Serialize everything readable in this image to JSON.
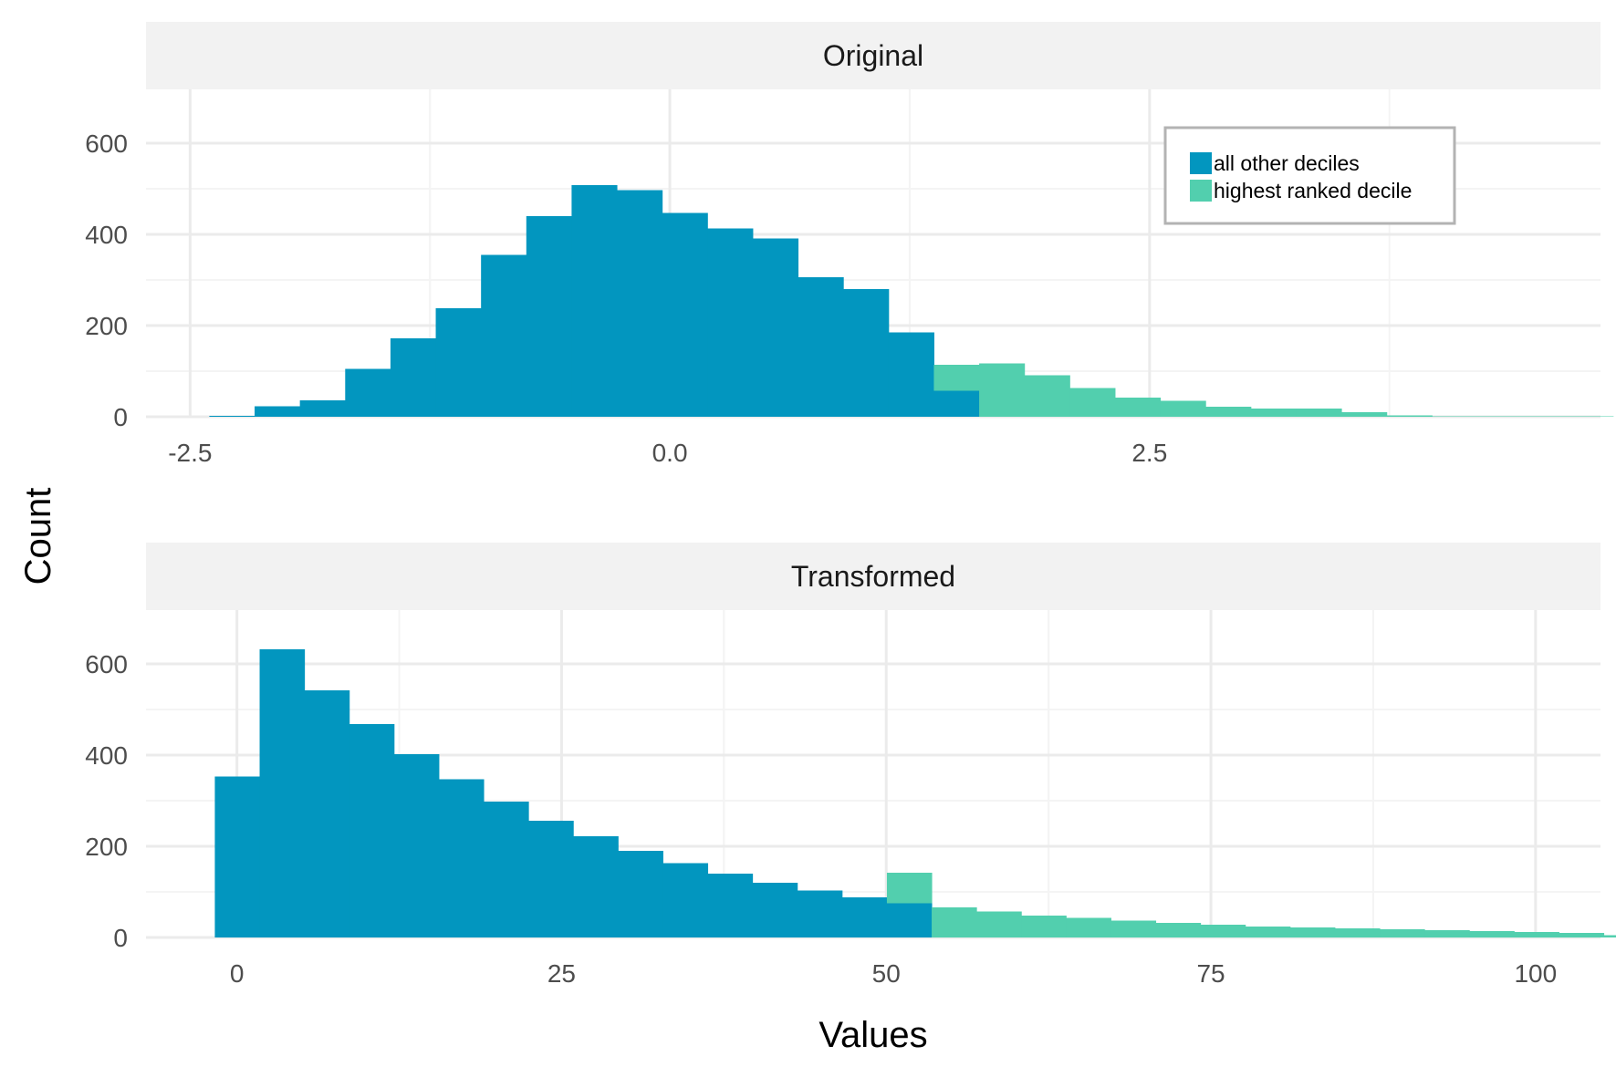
{
  "colors": {
    "other": "#0296bf",
    "top": "#52cfae",
    "strip_bg": "#f2f2f2",
    "grid_major": "#ebebeb",
    "grid_minor": "#f4f4f4",
    "legend_border": "#b3b3b3"
  },
  "legend": {
    "placement": "top-right of first panel",
    "items": [
      {
        "label": "all other deciles",
        "color": "#0296bf"
      },
      {
        "label": "highest ranked decile",
        "color": "#52cfae"
      }
    ]
  },
  "axes": {
    "xlabel": "Values",
    "ylabel": "Count"
  },
  "chart_data": [
    {
      "type": "bar",
      "panel": "Original",
      "title": "Original",
      "binwidth": 0.236,
      "xlim": [
        -2.73,
        4.85
      ],
      "ylim": [
        0,
        650
      ],
      "xticks": [
        -2.5,
        0,
        2.5
      ],
      "xtick_labels": [
        "-2.5",
        "0.0",
        "2.5"
      ],
      "yticks": [
        0,
        200,
        400,
        600
      ],
      "ytick_labels": [
        "0",
        "200",
        "400",
        "600"
      ],
      "grid": true,
      "x_start": -2.4,
      "series": [
        {
          "name": "all other deciles",
          "values": [
            2,
            23,
            36,
            105,
            172,
            238,
            355,
            440,
            508,
            497,
            447,
            413,
            391,
            306,
            280,
            185,
            57
          ]
        },
        {
          "name": "highest ranked decile",
          "values": [
            0,
            0,
            0,
            0,
            0,
            0,
            0,
            0,
            0,
            0,
            0,
            0,
            0,
            0,
            0,
            0,
            57,
            117,
            91,
            63,
            42,
            35,
            22,
            18,
            18,
            10,
            3,
            1,
            1,
            1,
            1
          ]
        }
      ]
    },
    {
      "type": "bar",
      "panel": "Transformed",
      "title": "Transformed",
      "binwidth": 3.45,
      "xlim": [
        -7,
        105
      ],
      "ylim": [
        0,
        650
      ],
      "xticks": [
        0,
        25,
        50,
        75,
        100
      ],
      "xtick_labels": [
        "0",
        "25",
        "50",
        "75",
        "100"
      ],
      "yticks": [
        0,
        200,
        400,
        600
      ],
      "ytick_labels": [
        "0",
        "200",
        "400",
        "600"
      ],
      "grid": true,
      "x_start": -1.7,
      "series": [
        {
          "name": "all other deciles",
          "values": [
            353,
            632,
            542,
            468,
            402,
            347,
            298,
            256,
            222,
            190,
            163,
            140,
            120,
            103,
            88,
            75
          ]
        },
        {
          "name": "highest ranked decile",
          "values": [
            0,
            0,
            0,
            0,
            0,
            0,
            0,
            0,
            0,
            0,
            0,
            0,
            0,
            0,
            0,
            67,
            66,
            57,
            48,
            43,
            37,
            32,
            28,
            24,
            22,
            20,
            18,
            16,
            14,
            12,
            10,
            5
          ]
        }
      ]
    }
  ]
}
